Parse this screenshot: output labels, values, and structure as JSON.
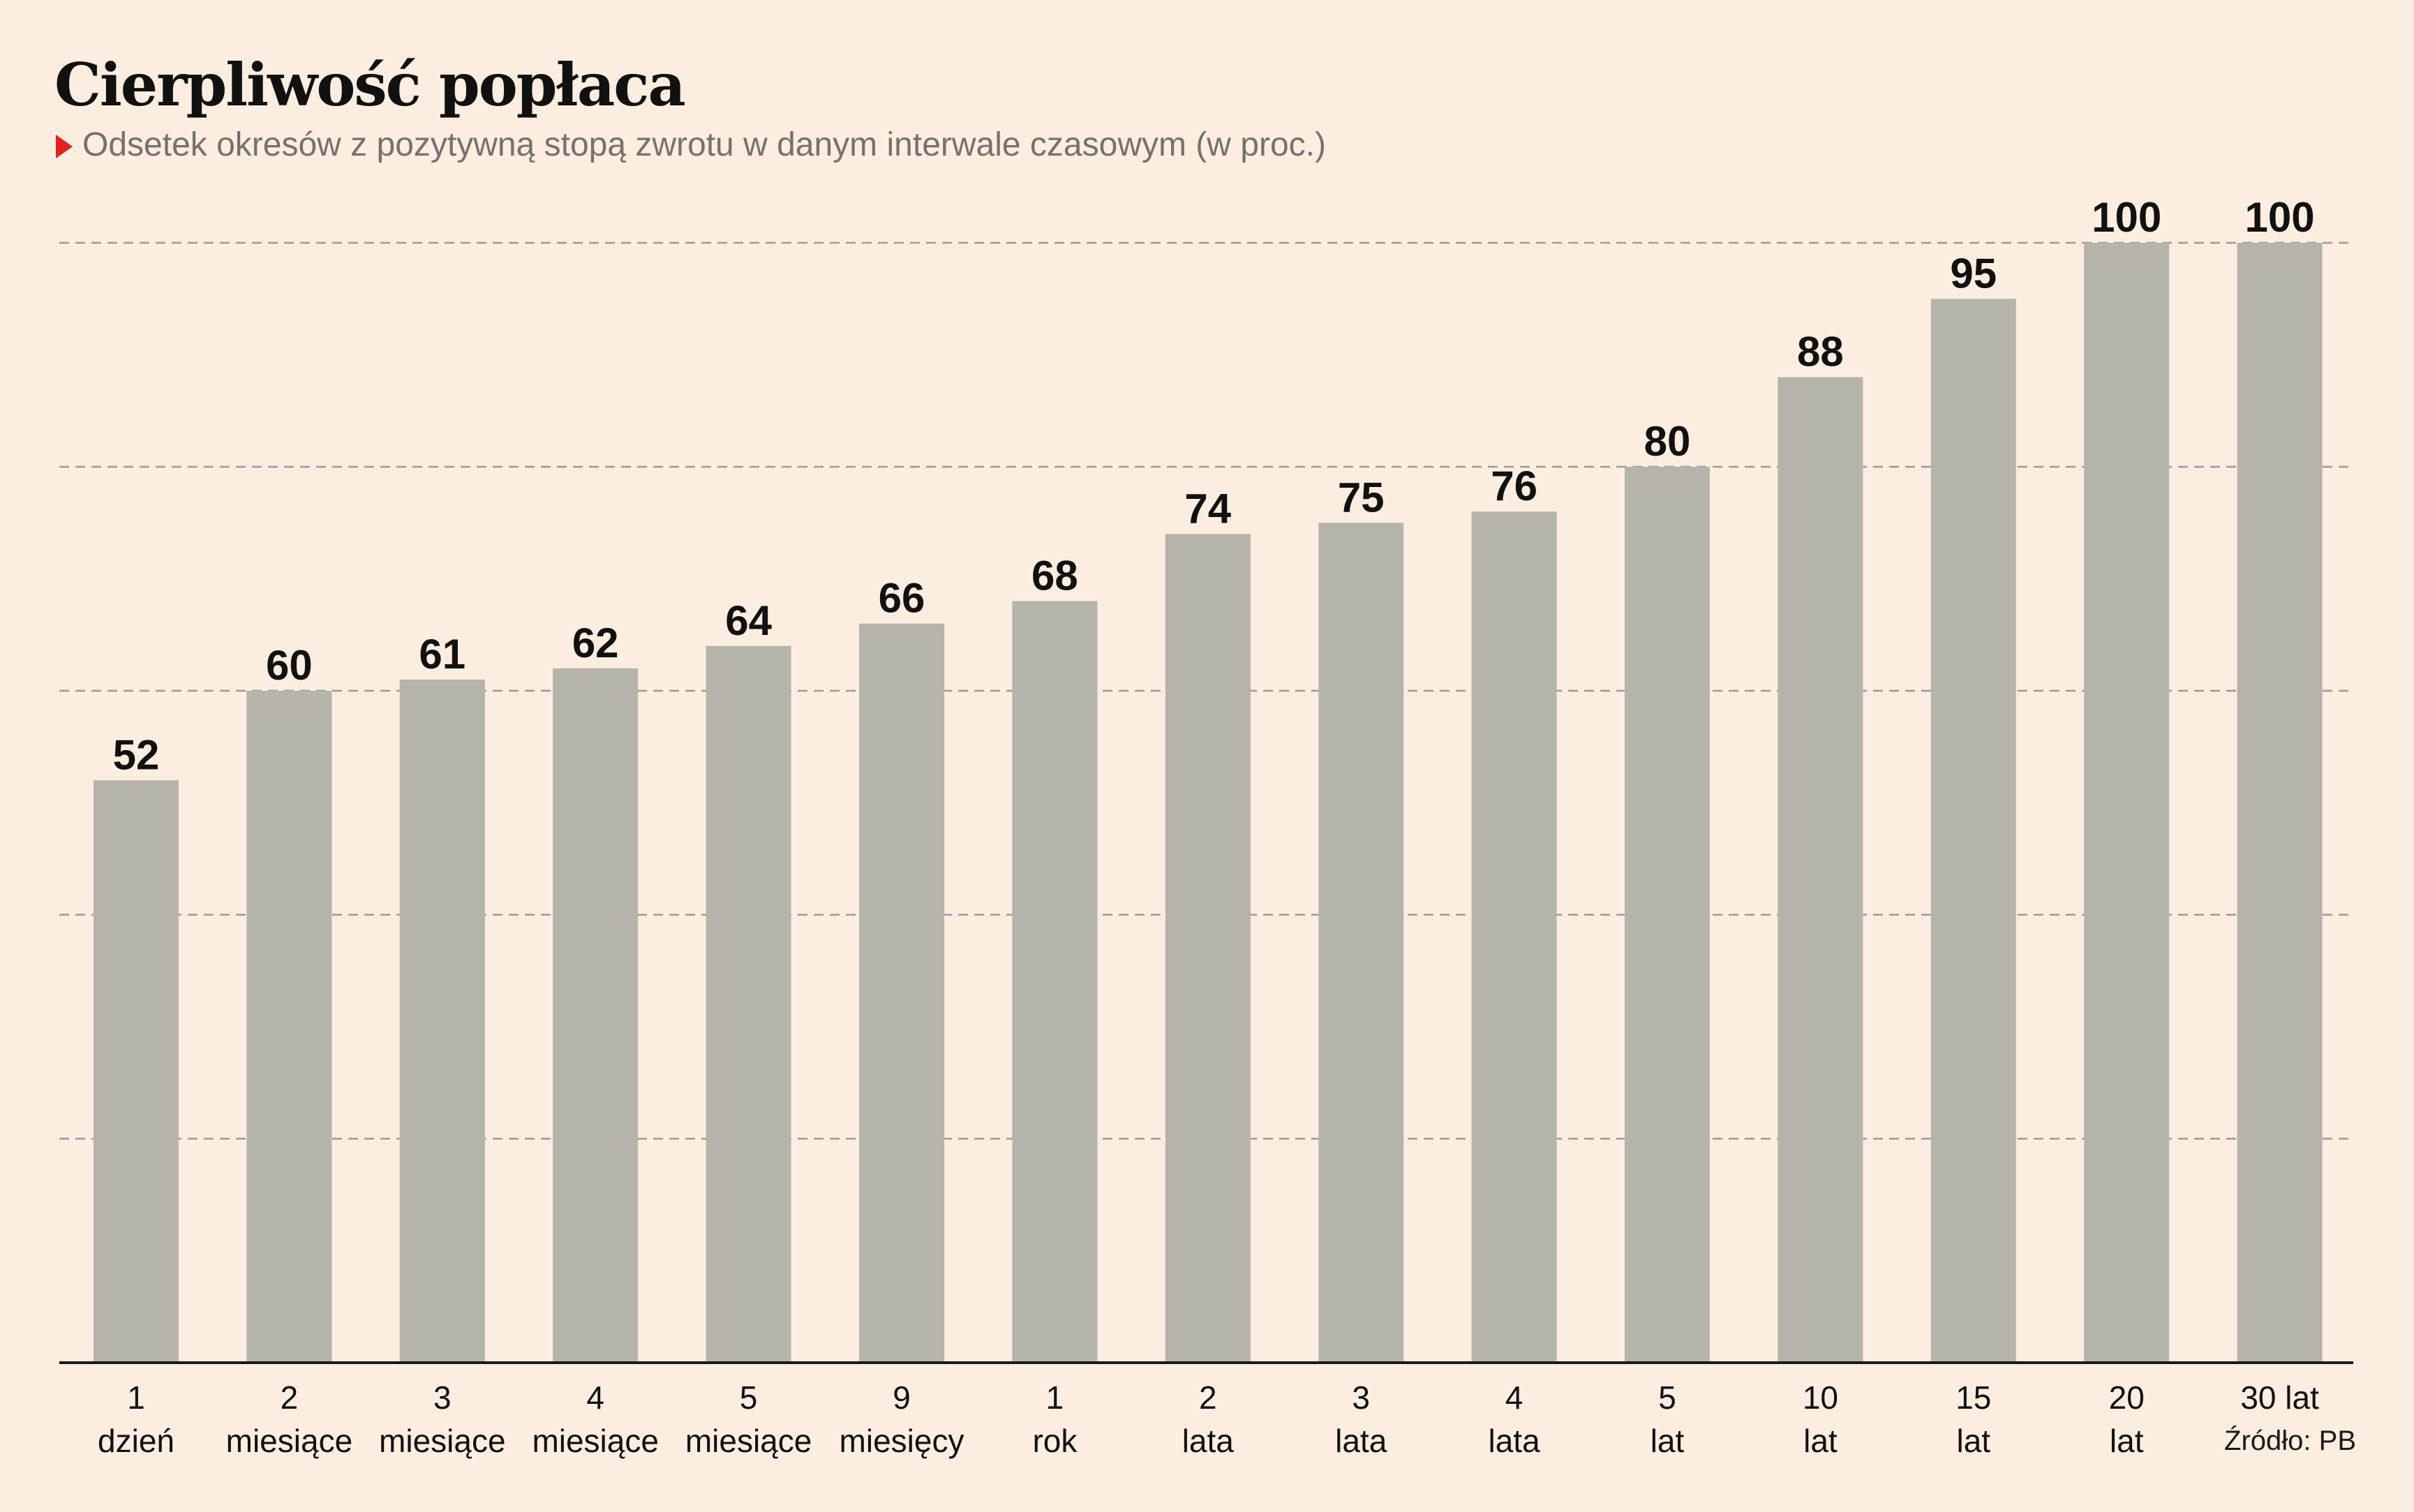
{
  "header": {
    "title": "Cierpliwość popłaca",
    "subtitle": "Odsetek okresów z pozytywną stopą zwrotu w danym interwale czasowym (w proc.)",
    "marker_color": "#e2231a"
  },
  "footer": {
    "source": "Źródło: PB"
  },
  "colors": {
    "background": "#fbede0",
    "bar": "#b5b4aa",
    "grid": "#9c9893"
  },
  "chart_data": {
    "type": "bar",
    "title": "Cierpliwość popłaca",
    "subtitle": "Odsetek okresów z pozytywną stopą zwrotu w danym interwale czasowym (w proc.)",
    "xlabel": "",
    "ylabel": "",
    "ylim": [
      0,
      100
    ],
    "gridlines": [
      20,
      40,
      60,
      80,
      100
    ],
    "grid": true,
    "legend": "none",
    "categories": [
      [
        "1",
        "dzień"
      ],
      [
        "2",
        "miesiące"
      ],
      [
        "3",
        "miesiące"
      ],
      [
        "4",
        "miesiące"
      ],
      [
        "5",
        "miesiące"
      ],
      [
        "9",
        "miesięcy"
      ],
      [
        "1",
        "rok"
      ],
      [
        "2",
        "lata"
      ],
      [
        "3",
        "lata"
      ],
      [
        "4",
        "lata"
      ],
      [
        "5",
        "lat"
      ],
      [
        "10",
        "lat"
      ],
      [
        "15",
        "lat"
      ],
      [
        "20",
        "lat"
      ],
      [
        "30 lat"
      ]
    ],
    "values": [
      52,
      60,
      61,
      62,
      64,
      66,
      68,
      74,
      75,
      76,
      80,
      88,
      95,
      100,
      100
    ]
  }
}
